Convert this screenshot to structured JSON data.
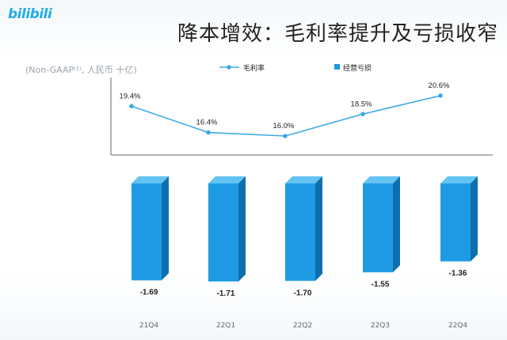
{
  "header": {
    "logo_text": "bilibili",
    "title": "降本增效：毛利率提升及亏损收窄",
    "unit": "(Non-GAAP⁽¹⁾, 人民币 十亿)"
  },
  "colors": {
    "accent": "#23ade5",
    "bar_front": "#1e9be4",
    "bar_top": "#63c3f2",
    "bar_side": "#0e6fae",
    "line": "#3fa8e4",
    "axis": "#666666"
  },
  "chart_data": {
    "type": "bar",
    "categories": [
      "21Q4",
      "22Q1",
      "22Q2",
      "22Q3",
      "22Q4"
    ],
    "series": [
      {
        "name": "毛利率",
        "type": "line",
        "values": [
          19.4,
          16.4,
          16.0,
          18.5,
          20.6
        ],
        "labels": [
          "19.4%",
          "16.4%",
          "16.0%",
          "18.5%",
          "20.6%"
        ]
      },
      {
        "name": "经营亏损",
        "type": "bar",
        "values": [
          -1.69,
          -1.71,
          -1.7,
          -1.55,
          -1.36
        ],
        "labels": [
          "-1.69",
          "-1.71",
          "-1.70",
          "-1.55",
          "-1.36"
        ]
      }
    ],
    "legend": [
      "毛利率",
      "经营亏损"
    ],
    "legend_position": "top"
  }
}
